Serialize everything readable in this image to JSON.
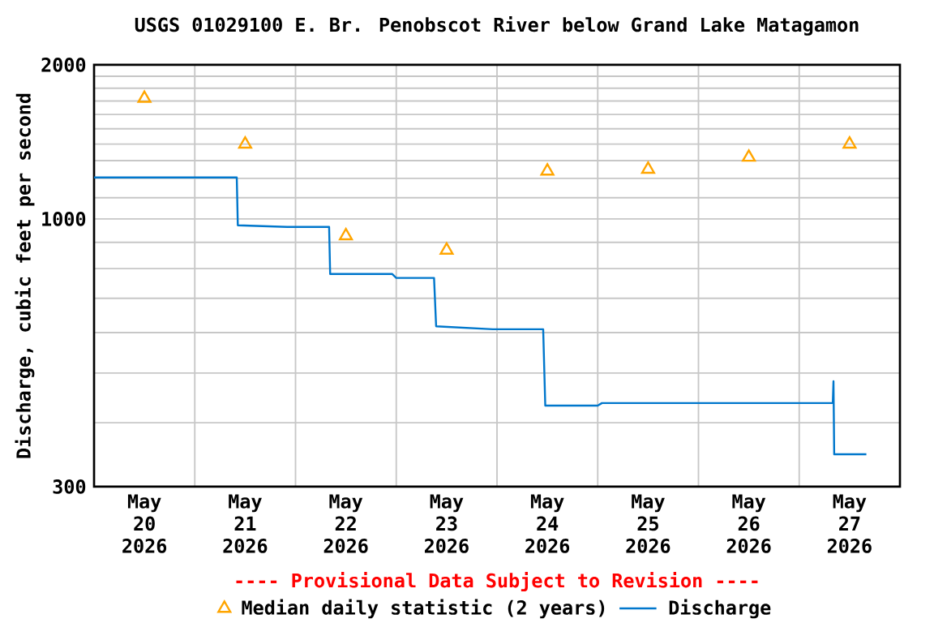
{
  "chart_data": {
    "type": "line",
    "title": "USGS 01029100 E. Br. Penobscot River below Grand Lake Matagamon",
    "ylabel": "Discharge, cubic feet per second",
    "annotations": [
      "---- Provisional Data Subject to Revision ----"
    ],
    "log": "y",
    "grid": true,
    "legend": "bottom",
    "xlim": [
      "2026-05-20T00:00",
      "2026-05-28T00:00"
    ],
    "xticks": [
      {
        "value": "2026-05-20T12:00",
        "label": "May 20 2026"
      },
      {
        "value": "2026-05-21T12:00",
        "label": "May 21 2026"
      },
      {
        "value": "2026-05-22T12:00",
        "label": "May 22 2026"
      },
      {
        "value": "2026-05-23T12:00",
        "label": "May 23 2026"
      },
      {
        "value": "2026-05-24T12:00",
        "label": "May 24 2026"
      },
      {
        "value": "2026-05-25T12:00",
        "label": "May 25 2026"
      },
      {
        "value": "2026-05-26T12:00",
        "label": "May 26 2026"
      },
      {
        "value": "2026-05-27T12:00",
        "label": "May 27 2026"
      },
      {
        "value": "2026-05-21T00:00",
        "label": null
      },
      {
        "value": "2026-05-22T00:00",
        "label": null
      },
      {
        "value": "2026-05-23T00:00",
        "label": null
      },
      {
        "value": "2026-05-24T00:00",
        "label": null
      },
      {
        "value": "2026-05-25T00:00",
        "label": null
      },
      {
        "value": "2026-05-26T00:00",
        "label": null
      },
      {
        "value": "2026-05-27T00:00",
        "label": null
      }
    ],
    "ylim": [
      300,
      2000
    ],
    "yticks": [
      300,
      {
        "value": 400,
        "label": null
      },
      {
        "value": 500,
        "label": null
      },
      {
        "value": 600,
        "label": null
      },
      {
        "value": 700,
        "label": null
      },
      {
        "value": 800,
        "label": null
      },
      {
        "value": 900,
        "label": null
      },
      1000,
      {
        "value": 1100,
        "label": null
      },
      {
        "value": 1200,
        "label": null
      },
      {
        "value": 1300,
        "label": null
      },
      {
        "value": 1400,
        "label": null
      },
      {
        "value": 1500,
        "label": null
      },
      {
        "value": 1600,
        "label": null
      },
      {
        "value": 1700,
        "label": null
      },
      {
        "value": 1800,
        "label": null
      },
      {
        "value": 1900,
        "label": null
      },
      2000
    ],
    "series": [
      {
        "name": "Median daily statistic (2 years)",
        "type": "scatter",
        "marker": "triangle",
        "color": "#ffa500",
        "x": [
          "2026-05-20T12:00",
          "2026-05-21T12:00",
          "2026-05-22T12:00",
          "2026-05-23T12:00",
          "2026-05-24T12:00",
          "2026-05-25T12:00",
          "2026-05-26T12:00",
          "2026-05-27T12:00"
        ],
        "values": [
          1720,
          1400,
          927,
          869,
          1240,
          1250,
          1320,
          1400
        ]
      },
      {
        "name": "Discharge",
        "marker": "none",
        "color": "#0077cc",
        "x": [
          "2026-05-20T00:00",
          "2026-05-21T10:00",
          "2026-05-21T10:15",
          "2026-05-21T22:00",
          "2026-05-22T08:00",
          "2026-05-22T08:15",
          "2026-05-22T23:00",
          "2026-05-23T00:00",
          "2026-05-23T09:00",
          "2026-05-23T09:30",
          "2026-05-23T23:00",
          "2026-05-24T11:00",
          "2026-05-24T11:30",
          "2026-05-25T00:00",
          "2026-05-25T01:00",
          "2026-05-27T08:00",
          "2026-05-27T08:10",
          "2026-05-27T08:20",
          "2026-05-27T16:00"
        ],
        "values": [
          1205,
          1205,
          972,
          965,
          965,
          781,
          781,
          767,
          767,
          617,
          609,
          609,
          432,
          432,
          437,
          437,
          482,
          347,
          347
        ]
      }
    ]
  }
}
